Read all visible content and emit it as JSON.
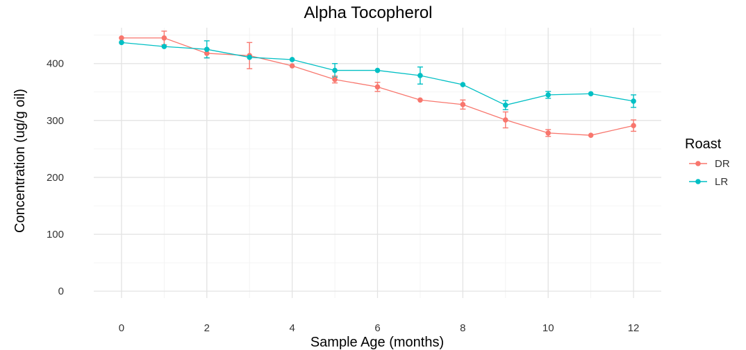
{
  "chart_data": {
    "type": "line",
    "title": "Alpha Tocopherol",
    "xlabel": "Sample Age (months)",
    "ylabel": "Concentration (ug/g oil)",
    "xlim": [
      -0.65,
      12.65
    ],
    "ylim": [
      -12,
      463
    ],
    "x_ticks": [
      0,
      2,
      4,
      6,
      8,
      10,
      12
    ],
    "y_ticks": [
      0,
      100,
      200,
      300,
      400
    ],
    "grid": true,
    "legend": {
      "title": "Roast",
      "position": "right"
    },
    "series": [
      {
        "name": "DR",
        "color": "#F8766D",
        "x": [
          0,
          1,
          2,
          3,
          4,
          5,
          6,
          7,
          8,
          9,
          10,
          11,
          12
        ],
        "y": [
          445,
          445,
          418,
          414,
          396,
          372,
          359,
          336,
          328,
          301,
          278,
          274,
          291
        ],
        "err": [
          0,
          12,
          8,
          23,
          0,
          6,
          8,
          0,
          8,
          14,
          6,
          0,
          10
        ]
      },
      {
        "name": "LR",
        "color": "#00BFC4",
        "x": [
          0,
          1,
          2,
          3,
          4,
          5,
          6,
          7,
          8,
          9,
          10,
          11,
          12
        ],
        "y": [
          437,
          430,
          425,
          411,
          407,
          388,
          388,
          379,
          363,
          327,
          345,
          347,
          334
        ],
        "err": [
          0,
          0,
          15,
          0,
          0,
          12,
          0,
          15,
          0,
          8,
          6,
          0,
          11
        ]
      }
    ]
  }
}
